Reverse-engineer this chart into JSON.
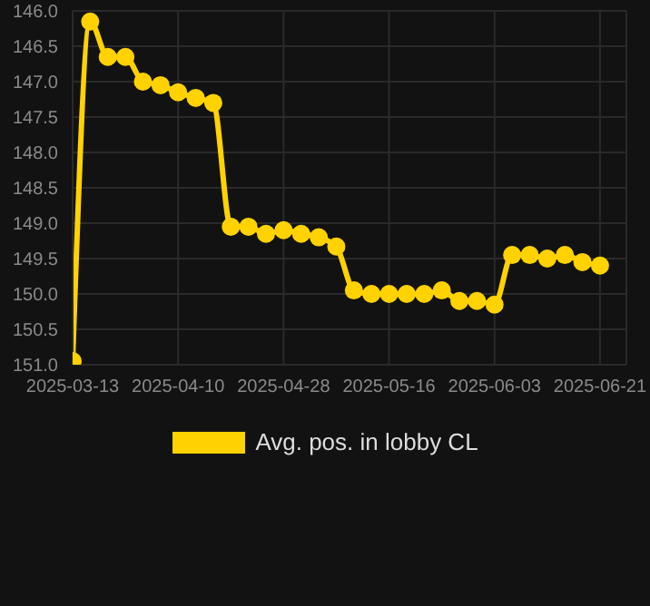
{
  "chart_data": {
    "type": "line",
    "categories": [
      "2025-03-13",
      null,
      null,
      null,
      null,
      null,
      "2025-04-10",
      null,
      null,
      null,
      null,
      null,
      "2025-04-28",
      null,
      null,
      null,
      null,
      null,
      "2025-05-16",
      null,
      null,
      null,
      null,
      null,
      "2025-06-03",
      null,
      null,
      null,
      null,
      null,
      "2025-06-21"
    ],
    "series": [
      {
        "name": "Avg. pos. in lobby CL",
        "color": "#ffd200",
        "values": [
          150.95,
          146.15,
          146.65,
          146.65,
          147.0,
          147.05,
          147.15,
          147.23,
          147.3,
          149.05,
          149.05,
          149.15,
          149.1,
          149.15,
          149.2,
          149.33,
          149.95,
          150.0,
          150.0,
          150.0,
          150.0,
          149.95,
          150.1,
          150.1,
          150.15,
          149.45,
          149.45,
          149.5,
          149.45,
          149.55,
          149.6
        ]
      }
    ],
    "ylim": [
      151.0,
      146.0
    ],
    "yticks": [
      {
        "value": 146,
        "label": "146.0"
      },
      {
        "value": 146.5,
        "label": "146.5"
      },
      {
        "value": 147,
        "label": "147.0"
      },
      {
        "value": 147.5,
        "label": "147.5"
      },
      {
        "value": 148,
        "label": "148.0"
      },
      {
        "value": 148.5,
        "label": "148.5"
      },
      {
        "value": 149,
        "label": "149.0"
      },
      {
        "value": 149.5,
        "label": "149.5"
      },
      {
        "value": 150,
        "label": "150.0"
      },
      {
        "value": 150.5,
        "label": "150.5"
      },
      {
        "value": 151,
        "label": "151.0"
      }
    ],
    "grid": true,
    "legend": "bottom",
    "marker": "circle",
    "line_style": "solid"
  }
}
